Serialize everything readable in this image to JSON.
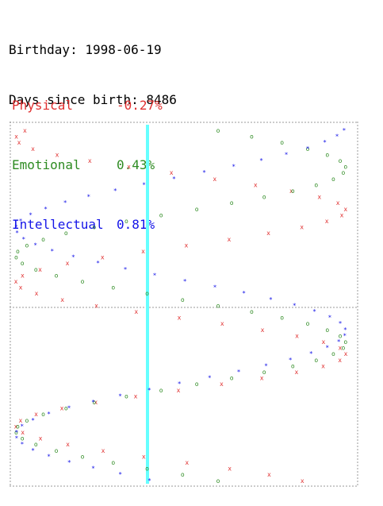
{
  "header": {
    "birthday_label": "Birthday:",
    "birthday_value": "1998-06-19",
    "days_label": "Days since birth:",
    "days_value": "8486"
  },
  "cycles": [
    {
      "name": "Physical",
      "value": "-0.27%",
      "color": "#e03030"
    },
    {
      "name": "Emotional",
      "value": "0.43%",
      "color": "#2e8b22"
    },
    {
      "name": "Intellectual",
      "value": "0.81%",
      "color": "#1414e8"
    }
  ],
  "chart_data": {
    "type": "line",
    "series": [
      {
        "name": "Physical",
        "char": "x",
        "color": "#e03030",
        "period_days": 23,
        "current": -0.27
      },
      {
        "name": "Emotional",
        "char": "o",
        "color": "#2e8b22",
        "period_days": 28,
        "current": 0.43
      },
      {
        "name": "Intellectual",
        "char": "*",
        "color": "#1414e8",
        "period_days": 33,
        "current": 0.81
      }
    ],
    "today_marker_color": "#66ffff",
    "grid": true
  }
}
